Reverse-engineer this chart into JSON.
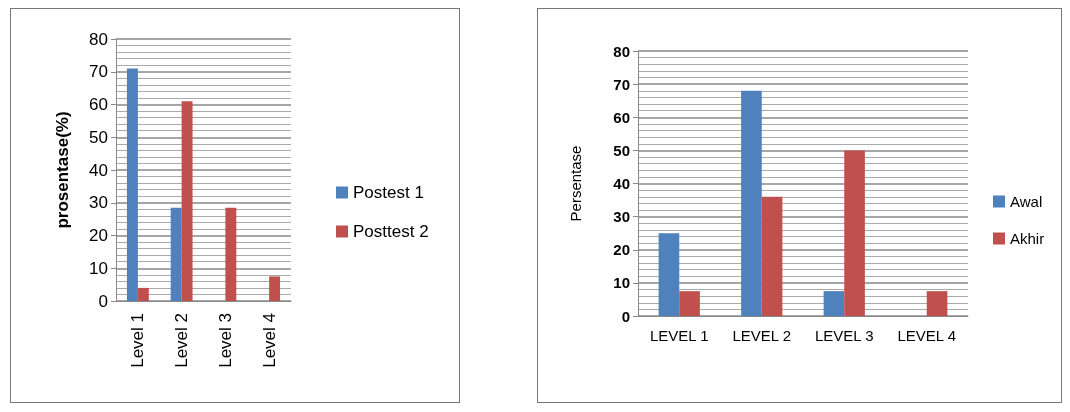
{
  "chart_data": [
    {
      "type": "bar",
      "ylabel": "prosentase(%)",
      "categories": [
        "Level 1",
        "Level 2",
        "Level 3",
        "Level 4"
      ],
      "series": [
        {
          "name": "Postest 1",
          "color": "#4f81bd",
          "values": [
            71,
            28.5,
            0,
            0
          ]
        },
        {
          "name": "Posttest 2",
          "color": "#c0504d",
          "values": [
            4,
            61,
            28.5,
            7.5
          ]
        }
      ],
      "ylim": [
        0,
        80
      ],
      "yticks": [
        0,
        10,
        20,
        30,
        40,
        50,
        60,
        70,
        80
      ],
      "grid": true,
      "legend": "right"
    },
    {
      "type": "bar",
      "ylabel": "Persentase",
      "categories": [
        "LEVEL 1",
        "LEVEL 2",
        "LEVEL 3",
        "LEVEL 4"
      ],
      "series": [
        {
          "name": "Awal",
          "color": "#4f81bd",
          "values": [
            25,
            68,
            7.5,
            0
          ]
        },
        {
          "name": "Akhir",
          "color": "#c0504d",
          "values": [
            7.5,
            36,
            50,
            7.5
          ]
        }
      ],
      "ylim": [
        0,
        80
      ],
      "yticks": [
        0,
        10,
        20,
        30,
        40,
        50,
        60,
        70,
        80
      ],
      "grid": true,
      "legend": "right"
    }
  ]
}
